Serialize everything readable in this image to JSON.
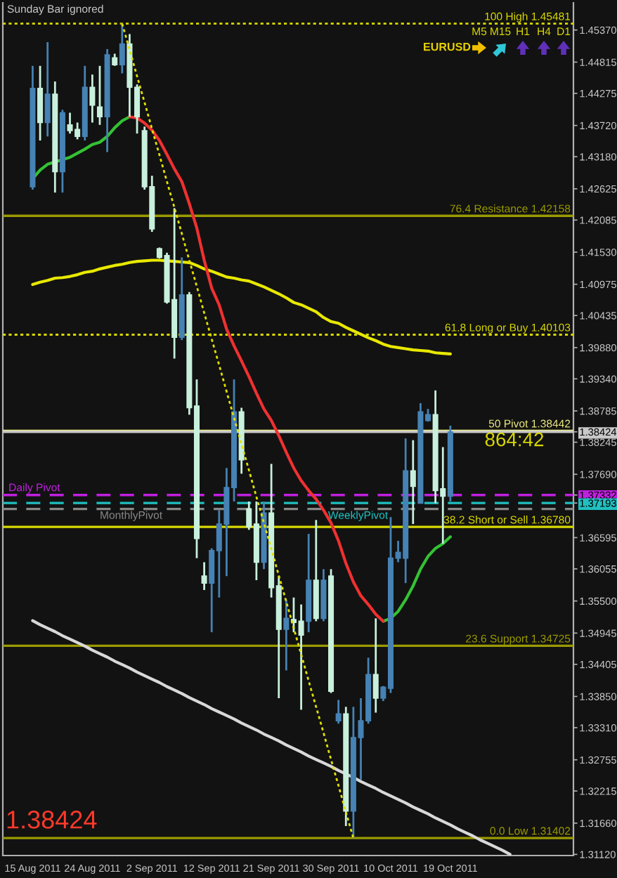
{
  "chart_data": {
    "type": "candlestick",
    "title": "Sunday Bar ignored",
    "categories": [
      "15 Aug 2011",
      null,
      null,
      null,
      null,
      null,
      null,
      null,
      "24 Aug 2011",
      null,
      null,
      null,
      null,
      null,
      null,
      null,
      "2 Sep 2011",
      null,
      null,
      null,
      null,
      null,
      null,
      null,
      "12 Sep 2011",
      null,
      null,
      null,
      null,
      null,
      null,
      null,
      "21 Sep 2011",
      null,
      null,
      null,
      null,
      null,
      null,
      null,
      "30 Sep 2011",
      null,
      null,
      null,
      null,
      null,
      null,
      null,
      "10 Oct 2011",
      null,
      null,
      null,
      null,
      null,
      null,
      null,
      "19 Oct 2011",
      null,
      null,
      null,
      null,
      null,
      null,
      null,
      null,
      null,
      null,
      null,
      null,
      null,
      null,
      null,
      null
    ],
    "ohlc": [
      [
        1.4266,
        1.4475,
        1.4261,
        1.4436
      ],
      [
        1.4436,
        1.4475,
        1.4346,
        1.4377
      ],
      [
        1.4377,
        1.4516,
        1.4353,
        1.4426
      ],
      [
        1.4426,
        1.4448,
        1.4256,
        1.4292
      ],
      [
        1.4292,
        1.4399,
        1.4256,
        1.4394
      ],
      [
        1.4373,
        1.4394,
        1.4358,
        1.4363
      ],
      [
        1.4365,
        1.4377,
        1.4348,
        1.4353
      ],
      [
        1.4353,
        1.4475,
        1.4346,
        1.4438
      ],
      [
        1.4438,
        1.446,
        1.4377,
        1.4407
      ],
      [
        1.4404,
        1.4475,
        1.4373,
        1.4387
      ],
      [
        1.4387,
        1.4504,
        1.4326,
        1.4494
      ],
      [
        1.4489,
        1.4496,
        1.4475,
        1.4477
      ],
      [
        1.4477,
        1.4548,
        1.4462,
        1.4513
      ],
      [
        1.4513,
        1.453,
        1.4387,
        1.4438
      ],
      [
        1.4438,
        1.4443,
        1.4358,
        1.4387
      ],
      [
        1.4363,
        1.437,
        1.4261,
        1.4266
      ],
      [
        1.4266,
        1.4285,
        1.4188,
        1.4193
      ],
      [
        1.4159,
        1.4161,
        1.4142,
        1.4144
      ],
      [
        1.4147,
        1.4152,
        1.4064,
        1.4067
      ],
      [
        1.4071,
        1.4229,
        1.3969,
        1.4006
      ],
      [
        1.4006,
        1.4144,
        1.4001,
        1.4079
      ],
      [
        1.4079,
        1.4084,
        1.3872,
        1.3884
      ],
      [
        1.3887,
        1.3933,
        1.3624,
        1.3658
      ],
      [
        1.3593,
        1.3617,
        1.3569,
        1.3581
      ],
      [
        1.3581,
        1.3641,
        1.3496,
        1.3637
      ],
      [
        1.3637,
        1.3707,
        1.3556,
        1.3683
      ],
      [
        1.3683,
        1.378,
        1.3593,
        1.3746
      ],
      [
        1.3746,
        1.3933,
        1.3722,
        1.3877
      ],
      [
        1.3877,
        1.3884,
        1.377,
        1.3794
      ],
      [
        1.3709,
        1.3722,
        1.3673,
        1.3678
      ],
      [
        1.3683,
        1.3722,
        1.3586,
        1.3617
      ],
      [
        1.3617,
        1.3722,
        1.3605,
        1.3702
      ],
      [
        1.3702,
        1.3787,
        1.3556,
        1.3573
      ],
      [
        1.3576,
        1.3593,
        1.3382,
        1.3501
      ],
      [
        1.3501,
        1.3552,
        1.343,
        1.352
      ],
      [
        1.3518,
        1.3556,
        1.3496,
        1.3513
      ],
      [
        1.3515,
        1.3544,
        1.3362,
        1.3491
      ],
      [
        1.3515,
        1.3666,
        1.3496,
        1.3586
      ],
      [
        1.3586,
        1.369,
        1.3515,
        1.352
      ],
      [
        1.352,
        1.3605,
        1.3515,
        1.3586
      ],
      [
        1.3593,
        1.3605,
        1.3391,
        1.3394
      ],
      [
        1.3343,
        1.3379,
        1.3338,
        1.3355
      ],
      [
        1.3355,
        1.3367,
        1.3161,
        1.3187
      ],
      [
        1.3187,
        1.3367,
        1.314,
        1.3314
      ],
      [
        1.3314,
        1.3382,
        1.3241,
        1.3343
      ],
      [
        1.3343,
        1.3452,
        1.3338,
        1.3423
      ],
      [
        1.3423,
        1.352,
        1.3357,
        1.3382
      ],
      [
        1.3382,
        1.3403,
        1.3377,
        1.3401
      ],
      [
        1.3399,
        1.3695,
        1.3391,
        1.3624
      ],
      [
        1.3624,
        1.3654,
        1.3617,
        1.3634
      ],
      [
        1.3624,
        1.3831,
        1.3581,
        1.3775
      ],
      [
        1.3775,
        1.3828,
        1.3683,
        1.3748
      ],
      [
        1.3719,
        1.3892,
        1.3719,
        1.3877
      ],
      [
        1.3862,
        1.3882,
        1.386,
        1.3872
      ],
      [
        1.3872,
        1.3914,
        1.3719,
        1.3741
      ],
      [
        1.3744,
        1.3816,
        1.3649,
        1.3731
      ],
      [
        1.3731,
        1.3853,
        1.3722,
        1.3842
      ],
      null,
      null,
      null,
      null,
      null,
      null,
      null,
      null,
      null,
      null,
      null,
      null,
      null,
      null,
      null,
      null
    ],
    "colors": [
      "#4682b4",
      "#c8f0dc",
      "#4682b4",
      "#c8f0dc",
      "#4682b4",
      "#c8f0dc",
      "#c8f0dc",
      "#4682b4",
      "#c8f0dc",
      "#c8f0dc",
      "#4682b4",
      "#c8f0dc",
      "#4682b4",
      "#c8f0dc",
      "#c8f0dc",
      "#c8f0dc",
      "#c8f0dc",
      "#c8f0dc",
      "#c8f0dc",
      "#c8f0dc",
      "#4682b4",
      "#c8f0dc",
      "#c8f0dc",
      "#c8f0dc",
      "#4682b4",
      "#4682b4",
      "#4682b4",
      "#4682b4",
      "#c8f0dc",
      "#c8f0dc",
      "#c8f0dc",
      "#4682b4",
      "#c8f0dc",
      "#c8f0dc",
      "#4682b4",
      "#c8f0dc",
      "#c8f0dc",
      "#4682b4",
      "#c8f0dc",
      "#4682b4",
      "#c8f0dc",
      "#4682b4",
      "#c8f0dc",
      "#4682b4",
      "#4682b4",
      "#4682b4",
      "#c8f0dc",
      "#4682b4",
      "#4682b4",
      "#4682b4",
      "#4682b4",
      "#c8f0dc",
      "#4682b4",
      "#4682b4",
      "#c8f0dc",
      "#c8f0dc",
      "#4682b4",
      null,
      null,
      null,
      null,
      null,
      null,
      null,
      null,
      null,
      null,
      null,
      null,
      null,
      null,
      null,
      null
    ],
    "series": [
      {
        "type": "line",
        "color": "#e8e800",
        "values": [
          1.4097,
          1.4101,
          1.4104,
          1.4108,
          1.4109,
          1.4111,
          1.4114,
          1.4118,
          1.412,
          1.4124,
          1.4127,
          1.413,
          1.4132,
          1.4135,
          1.4137,
          1.4138,
          1.4139,
          1.4139,
          1.4138,
          1.4137,
          1.4136,
          1.4135,
          1.413,
          1.4124,
          1.412,
          1.4115,
          1.411,
          1.4108,
          1.4105,
          1.4103,
          1.4098,
          1.4093,
          1.4087,
          1.4081,
          1.4074,
          1.4066,
          1.4062,
          1.4056,
          1.405,
          1.404,
          1.4033,
          1.403,
          1.4023,
          1.4017,
          1.4011,
          1.4005,
          1.4,
          1.3994,
          1.399,
          1.3988,
          1.3986,
          1.3984,
          1.3983,
          1.3982,
          1.3979,
          1.3978,
          1.3977,
          null,
          null,
          null,
          null,
          null,
          null,
          null,
          null,
          null,
          null,
          null,
          null,
          null,
          null,
          null,
          null
        ]
      },
      {
        "type": "line",
        "color": "#34c234",
        "values": [
          1.428,
          1.4295,
          1.4305,
          1.4309,
          1.4313,
          1.4317,
          1.4324,
          1.4331,
          1.4339,
          1.4343,
          1.4353,
          1.4368,
          1.438,
          1.4387,
          null,
          null,
          null,
          null,
          null,
          null,
          null,
          null,
          null,
          null,
          null,
          null,
          null,
          null,
          null,
          null,
          null,
          null,
          null,
          null,
          null,
          null,
          null,
          null,
          null,
          null,
          null,
          null,
          null,
          null,
          null,
          null,
          null,
          1.3515,
          1.352,
          1.3532,
          1.3552,
          1.3576,
          1.3605,
          1.3627,
          1.3641,
          1.3649,
          1.3661,
          null,
          null,
          null,
          null,
          null,
          null,
          null,
          null,
          null,
          null,
          null,
          null,
          null,
          null,
          null,
          null
        ]
      },
      {
        "type": "line",
        "color": "#f03030",
        "values": [
          null,
          null,
          null,
          null,
          null,
          null,
          null,
          null,
          null,
          null,
          null,
          null,
          null,
          1.4387,
          1.4385,
          1.4376,
          1.4364,
          1.4346,
          1.4322,
          1.4297,
          1.4275,
          1.4237,
          1.4195,
          1.4139,
          1.4091,
          1.4062,
          1.402,
          1.3991,
          1.3965,
          1.3938,
          1.3909,
          1.3882,
          1.3862,
          1.3836,
          1.3807,
          1.378,
          1.3758,
          1.3741,
          1.3726,
          1.3707,
          1.3685,
          1.3654,
          1.3615,
          1.3583,
          1.3559,
          1.3544,
          1.3527,
          1.3515,
          null,
          null,
          null,
          null,
          null,
          null,
          null,
          null,
          null,
          null,
          null,
          null,
          null,
          null,
          null,
          null,
          null,
          null,
          null,
          null,
          null,
          null,
          null,
          null,
          null
        ]
      },
      {
        "type": "line",
        "color": "#e0e000",
        "line_style": "dotted",
        "values": [
          null,
          null,
          null,
          null,
          null,
          null,
          null,
          null,
          null,
          null,
          null,
          null,
          1.4548,
          1.4503,
          1.4457,
          1.4412,
          1.4366,
          1.4321,
          1.4275,
          1.423,
          1.4185,
          1.4139,
          1.4094,
          1.4048,
          1.4003,
          1.3958,
          1.3912,
          1.3867,
          1.3821,
          1.3776,
          1.373,
          1.3685,
          1.364,
          1.3594,
          1.3549,
          1.3503,
          1.3458,
          1.3412,
          1.3367,
          1.3322,
          1.3276,
          1.3231,
          1.3185,
          1.314,
          null,
          null,
          null,
          null,
          null,
          null,
          null,
          null,
          null,
          null,
          null,
          null,
          null,
          null,
          null,
          null,
          null,
          null,
          null,
          null,
          null,
          null,
          null,
          null,
          null,
          null,
          null,
          null,
          null
        ]
      },
      {
        "type": "line",
        "color": "#d8d8d8",
        "values": [
          1.3516,
          1.3509,
          1.3503,
          1.3497,
          1.349,
          1.3484,
          1.3478,
          1.3472,
          1.3465,
          1.3459,
          1.3453,
          1.3446,
          1.344,
          1.3434,
          1.3427,
          1.3421,
          1.3415,
          1.3409,
          1.3402,
          1.3396,
          1.339,
          1.3383,
          1.3377,
          1.3371,
          1.3364,
          1.3358,
          1.3352,
          1.3346,
          1.3339,
          1.3333,
          1.3327,
          1.332,
          1.3314,
          1.3308,
          1.3301,
          1.3295,
          1.3289,
          1.3282,
          1.3276,
          1.327,
          1.3264,
          1.3257,
          1.3251,
          1.3245,
          1.3238,
          1.3232,
          1.3226,
          1.3219,
          1.3213,
          1.3207,
          1.3201,
          1.3194,
          1.3188,
          1.3182,
          1.3175,
          1.3169,
          1.3163,
          1.3156,
          1.315,
          1.3144,
          1.3137,
          1.3131,
          1.3125,
          1.3119,
          1.3112,
          null,
          null,
          null,
          null,
          null,
          null,
          null,
          null
        ]
      }
    ],
    "ylim": [
      1.311,
      1.4584
    ],
    "yticks": [
      {
        "value": 1.4537,
        "label": "1.45370"
      },
      1.44815,
      1.44275,
      {
        "value": 1.4372,
        "label": "1.43720"
      },
      {
        "value": 1.4318,
        "label": "1.43180"
      },
      1.42625,
      1.42085,
      {
        "value": 1.4153,
        "label": "1.41530"
      },
      1.40975,
      1.40435,
      {
        "value": 1.3988,
        "label": "1.39880"
      },
      {
        "value": 1.3934,
        "label": "1.39340"
      },
      1.38785,
      1.38424,
      1.38245,
      {
        "value": 1.3769,
        "label": "1.37690"
      },
      1.37332,
      1.37193,
      1.36595,
      1.36055,
      {
        "value": 1.355,
        "label": "1.35500"
      },
      1.34945,
      1.34405,
      {
        "value": 1.3385,
        "label": "1.33850"
      },
      {
        "value": 1.3331,
        "label": "1.33310"
      },
      1.32755,
      1.32215,
      {
        "value": 1.3166,
        "label": "1.31660"
      },
      {
        "value": 1.3112,
        "label": "1.31120"
      }
    ],
    "ref_lines": [
      {
        "axis": "y",
        "value": 1.45481,
        "label": "100 High 1.45481",
        "color": "#d8d800",
        "line_style": "dotted"
      },
      {
        "axis": "y",
        "value": 1.42158,
        "label": "76.4 Resistance 1.42158",
        "color": "#9a9a00"
      },
      {
        "axis": "y",
        "value": 1.40103,
        "label": "61.8 Long or Buy 1.40103",
        "color": "#d8d800",
        "line_style": "dotted"
      },
      {
        "axis": "y",
        "value": 1.38442,
        "label": "50 Pivot 1.38442",
        "color": "#ecec80"
      },
      {
        "axis": "y",
        "value": 1.3678,
        "label": "38.2 Short or Sell 1.36780",
        "color": "#d8d800"
      },
      {
        "axis": "y",
        "value": 1.34725,
        "label": "23.6 Support 1.34725",
        "color": "#9a9a00"
      },
      {
        "axis": "y",
        "value": 1.31402,
        "label": "0.0 Low 1.31402",
        "color": "#9a9a00"
      },
      {
        "axis": "y",
        "value": 1.38424,
        "color": "#c8c8c8"
      },
      {
        "axis": "y",
        "value": 1.37332,
        "label": "Daily Pivot",
        "color": "#c020e0",
        "line_style": "dashed"
      },
      {
        "axis": "y",
        "value": 1.37193,
        "label": "WeeklyPivot",
        "color": "#20c0c0",
        "line_style": "dashed"
      },
      {
        "axis": "y",
        "value": 1.3709,
        "label": "MonthlyPivot",
        "color": "#888888",
        "line_style": "dashed"
      }
    ],
    "annotations": [
      "EURUSD",
      "M5",
      "M15",
      "H1",
      "H4",
      "D1",
      "864:42",
      "1.38424"
    ]
  }
}
